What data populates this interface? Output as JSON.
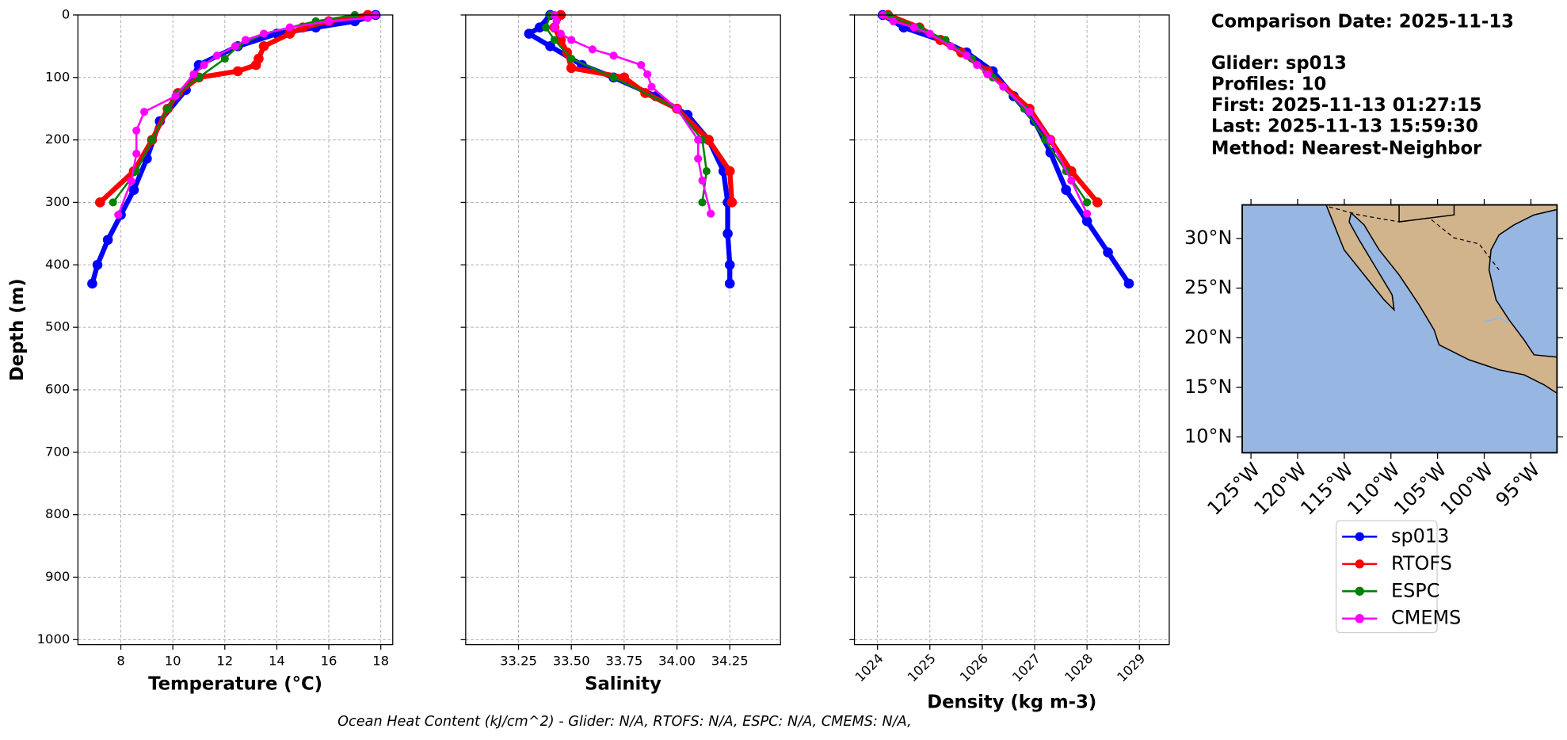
{
  "chart_data": [
    {
      "type": "line",
      "xlabel": "Temperature (°C)",
      "ylabel": "Depth (m)",
      "xlim": [
        6.35,
        18.46
      ],
      "xticks": [
        8,
        10,
        12,
        14,
        16,
        18
      ],
      "ylim": [
        1008,
        0
      ],
      "yticks": [
        0,
        100,
        200,
        300,
        400,
        500,
        600,
        700,
        800,
        900,
        1000
      ],
      "grid": true,
      "series": [
        {
          "depth": [
            0,
            10,
            20,
            30,
            50,
            80,
            120,
            170,
            230,
            280,
            320,
            360,
            400,
            430
          ],
          "values": [
            17.8,
            17.0,
            15.5,
            14.0,
            12.5,
            11.0,
            10.5,
            9.5,
            9.0,
            8.5,
            8.0,
            7.5,
            7.1,
            6.9
          ]
        },
        {
          "depth": [
            0,
            10,
            20,
            30,
            50,
            70,
            80,
            90,
            100,
            125,
            150,
            200,
            250,
            300
          ],
          "values": [
            17.5,
            16.0,
            15.0,
            14.5,
            13.5,
            13.3,
            13.2,
            12.5,
            11.0,
            10.2,
            9.8,
            9.2,
            8.5,
            7.2
          ]
        },
        {
          "depth": [
            0,
            10,
            20,
            30,
            50,
            70,
            100,
            125,
            150,
            200,
            250,
            300
          ],
          "values": [
            17.0,
            15.5,
            14.5,
            13.5,
            12.5,
            12.0,
            11.0,
            10.2,
            9.8,
            9.2,
            8.6,
            7.7
          ]
        },
        {
          "depth": [
            0,
            5,
            10,
            20,
            30,
            40,
            50,
            65,
            80,
            95,
            130,
            155,
            185,
            222,
            266,
            320
          ],
          "values": [
            17.8,
            17.5,
            16.0,
            14.5,
            13.5,
            12.8,
            12.4,
            11.7,
            11.2,
            10.8,
            10.1,
            8.9,
            8.6,
            8.6,
            8.4,
            7.9
          ]
        }
      ]
    },
    {
      "type": "line",
      "xlabel": "Salinity",
      "xlim": [
        33.0,
        34.49
      ],
      "xticks": [
        33.25,
        {
          "value": 33.5,
          "label": "33.50"
        },
        33.75,
        {
          "value": 34.0,
          "label": "34.00"
        },
        34.25
      ],
      "ylim": [
        1008,
        0
      ],
      "yticks": [
        0,
        100,
        200,
        300,
        400,
        500,
        600,
        700,
        800,
        900,
        1000
      ],
      "grid": true,
      "series": [
        {
          "depth": [
            0,
            20,
            30,
            50,
            80,
            100,
            130,
            160,
            200,
            250,
            300,
            350,
            400,
            430
          ],
          "values": [
            33.4,
            33.35,
            33.3,
            33.4,
            33.55,
            33.7,
            33.9,
            34.05,
            34.15,
            34.22,
            34.24,
            34.24,
            34.25,
            34.25
          ]
        },
        {
          "depth": [
            0,
            20,
            40,
            60,
            85,
            100,
            125,
            150,
            200,
            250,
            300
          ],
          "values": [
            33.45,
            33.42,
            33.45,
            33.48,
            33.5,
            33.75,
            33.85,
            34.0,
            34.15,
            34.25,
            34.26
          ]
        },
        {
          "depth": [
            0,
            20,
            40,
            70,
            100,
            150,
            200,
            250,
            300
          ],
          "values": [
            33.4,
            33.38,
            33.42,
            33.5,
            33.7,
            34.0,
            34.12,
            34.14,
            34.12
          ]
        },
        {
          "depth": [
            0,
            10,
            20,
            30,
            40,
            55,
            65,
            80,
            95,
            115,
            150,
            200,
            230,
            265,
            318
          ],
          "values": [
            33.42,
            33.43,
            33.42,
            33.45,
            33.5,
            33.6,
            33.7,
            33.83,
            33.86,
            33.88,
            34.0,
            34.1,
            34.1,
            34.12,
            34.16
          ]
        }
      ]
    },
    {
      "type": "line",
      "xlabel": "Density (kg m-3)",
      "xlim": [
        1023.56,
        1029.57
      ],
      "xticks": [
        1024,
        1025,
        1026,
        1027,
        1028,
        1029
      ],
      "ylim": [
        1008,
        0
      ],
      "yticks": [
        0,
        100,
        200,
        300,
        400,
        500,
        600,
        700,
        800,
        900,
        1000
      ],
      "grid": true,
      "series": [
        {
          "depth": [
            0,
            20,
            40,
            60,
            90,
            130,
            170,
            220,
            280,
            330,
            380,
            430
          ],
          "values": [
            1024.1,
            1024.5,
            1025.2,
            1025.7,
            1026.2,
            1026.6,
            1027.0,
            1027.3,
            1027.6,
            1028.0,
            1028.4,
            1028.8
          ]
        },
        {
          "depth": [
            0,
            20,
            40,
            60,
            90,
            150,
            200,
            250,
            300
          ],
          "values": [
            1024.2,
            1024.8,
            1025.2,
            1025.6,
            1026.1,
            1026.9,
            1027.3,
            1027.7,
            1028.2
          ]
        },
        {
          "depth": [
            0,
            20,
            40,
            70,
            100,
            150,
            200,
            250,
            300
          ],
          "values": [
            1024.2,
            1024.8,
            1025.3,
            1025.8,
            1026.2,
            1026.8,
            1027.2,
            1027.6,
            1028.0
          ]
        },
        {
          "depth": [
            0,
            10,
            20,
            30,
            50,
            65,
            80,
            95,
            115,
            155,
            200,
            265,
            318
          ],
          "values": [
            1024.1,
            1024.3,
            1024.7,
            1025.0,
            1025.4,
            1025.7,
            1025.9,
            1026.1,
            1026.4,
            1026.9,
            1027.3,
            1027.7,
            1028.0
          ]
        }
      ]
    },
    {
      "type": "map",
      "xlim": [
        -125.94,
        -92.2
      ],
      "xticks": [
        {
          "value": -125,
          "label": "125°W"
        },
        {
          "value": -120,
          "label": "120°W"
        },
        {
          "value": -115,
          "label": "115°W"
        },
        {
          "value": -110,
          "label": "110°W"
        },
        {
          "value": -105,
          "label": "105°W"
        },
        {
          "value": -100,
          "label": "100°W"
        },
        {
          "value": -95,
          "label": "95°W"
        }
      ],
      "ylim": [
        8.4,
        33.4
      ],
      "yticks": [
        {
          "value": 10,
          "label": "10°N"
        },
        {
          "value": 15,
          "label": "15°N"
        },
        {
          "value": 20,
          "label": "20°N"
        },
        {
          "value": 25,
          "label": "25°N"
        },
        {
          "value": 30,
          "label": "30°N"
        }
      ]
    }
  ],
  "legend": [
    {
      "name": "sp013",
      "color": "#0000ff"
    },
    {
      "name": "RTOFS",
      "color": "#ff0000"
    },
    {
      "name": "ESPC",
      "color": "#008000"
    },
    {
      "name": "CMEMS",
      "color": "#ff00ff"
    }
  ],
  "info": [
    "Comparison Date: 2025-11-13",
    "Glider: sp013",
    "Profiles: 10",
    "First: 2025-11-13 01:27:15",
    "Last: 2025-11-13 15:59:30",
    "Method: Nearest-Neighbor"
  ],
  "footer": "Ocean Heat Content (kJ/cm^2) - Glider: N/A,  RTOFS: N/A,  ESPC: N/A,  CMEMS: N/A,"
}
